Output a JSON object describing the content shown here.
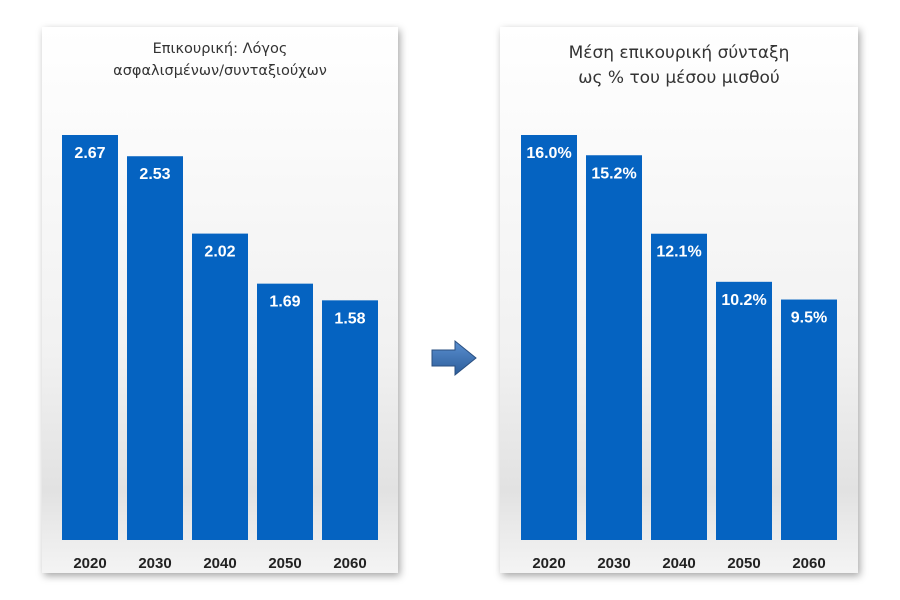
{
  "chart_data": [
    {
      "type": "bar",
      "title": [
        "Επικουρική: Λόγος",
        "ασφαλισμένων/συνταξιούχων"
      ],
      "categories": [
        "2020",
        "2030",
        "2040",
        "2050",
        "2060"
      ],
      "values": [
        2.67,
        2.53,
        2.02,
        1.69,
        1.58
      ],
      "labels": [
        "2.67",
        "2.53",
        "2.02",
        "1.69",
        "1.58"
      ],
      "ylim": [
        0,
        2.67
      ],
      "grid": false,
      "color": "#0563C1"
    },
    {
      "type": "bar",
      "title": [
        "Μέση επικουρική σύνταξη",
        "ως % του μέσου μισθού"
      ],
      "categories": [
        "2020",
        "2030",
        "2040",
        "2050",
        "2060"
      ],
      "values": [
        16.0,
        15.2,
        12.1,
        10.2,
        9.5
      ],
      "labels": [
        "16.0%",
        "15.2%",
        "12.1%",
        "10.2%",
        "9.5%"
      ],
      "ylim": [
        0,
        16.0
      ],
      "grid": false,
      "color": "#0563C1"
    }
  ],
  "arrow_icon": "right-arrow-icon",
  "arrow_color": "#3B6EA8"
}
